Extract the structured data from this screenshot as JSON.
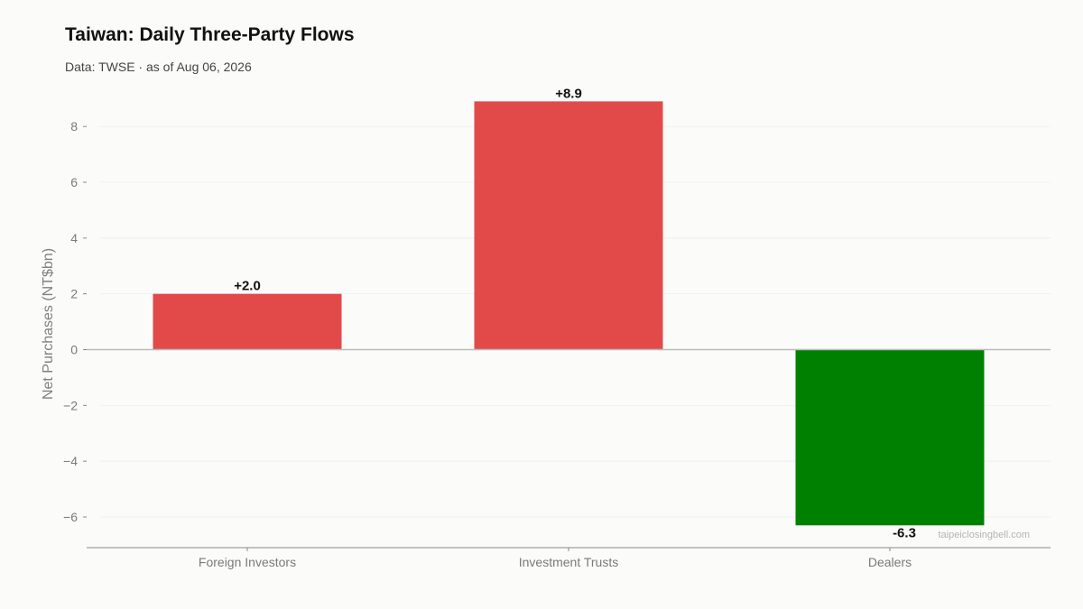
{
  "header": {
    "title": "Taiwan: Daily Three-Party Flows",
    "subtitle": "Data: TWSE · as of Aug 06, 2026"
  },
  "watermark": "taipeiclosingbell.com",
  "colors": {
    "positive": "#e24a4a",
    "negative": "#008000",
    "background": "#fbfbf9",
    "zero_line": "#bbbbbb",
    "axis": "#888888",
    "grid": "#f0f0f0"
  },
  "chart_data": {
    "type": "bar",
    "title": "Taiwan: Daily Three-Party Flows",
    "subtitle": "Data: TWSE · as of Aug 06, 2026",
    "xlabel": "",
    "ylabel": "Net Purchases (NT$bn)",
    "categories": [
      "Foreign Investors",
      "Investment Trusts",
      "Dealers"
    ],
    "values": [
      2.0,
      8.9,
      -6.3
    ],
    "data_labels": [
      "+2.0",
      "+8.9",
      "-6.3"
    ],
    "ylim": [
      -7.1,
      9.3
    ],
    "yticks": [
      -6,
      -4,
      -2,
      0,
      2,
      4,
      6,
      8
    ],
    "ytick_labels": [
      "−6",
      "−4",
      "−2",
      "0",
      "2",
      "4",
      "6",
      "8"
    ],
    "grid": true,
    "legend": "none"
  }
}
